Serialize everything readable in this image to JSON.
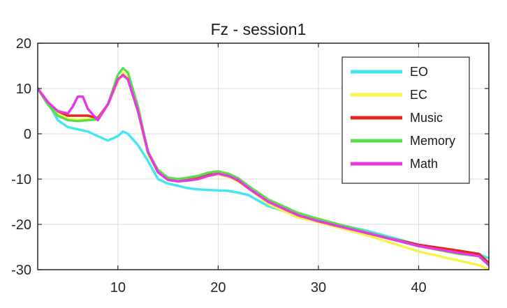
{
  "chart_data": {
    "type": "line",
    "title": "Fz - session1",
    "xlabel": "",
    "ylabel": "",
    "xlim": [
      2,
      47
    ],
    "ylim": [
      -30,
      20
    ],
    "x_ticks": [
      10,
      20,
      30,
      40
    ],
    "y_ticks": [
      20,
      10,
      0,
      -10,
      -20,
      -30
    ],
    "grid": true,
    "legend_position": "top-right",
    "series": [
      {
        "name": "EO",
        "color": "#44e6f2",
        "points": [
          [
            2,
            10
          ],
          [
            3,
            7
          ],
          [
            4,
            3
          ],
          [
            5,
            1.5
          ],
          [
            6,
            1
          ],
          [
            7,
            0.5
          ],
          [
            8,
            -0.5
          ],
          [
            9,
            -1.5
          ],
          [
            10,
            -0.5
          ],
          [
            10.5,
            0.5
          ],
          [
            11,
            0
          ],
          [
            12,
            -2.5
          ],
          [
            13,
            -6
          ],
          [
            14,
            -10
          ],
          [
            15,
            -11
          ],
          [
            16,
            -11.5
          ],
          [
            17,
            -12
          ],
          [
            18,
            -12.3
          ],
          [
            19,
            -12.4
          ],
          [
            20,
            -12.5
          ],
          [
            21,
            -12.6
          ],
          [
            22,
            -13
          ],
          [
            23,
            -13.5
          ],
          [
            25,
            -16
          ],
          [
            28,
            -18
          ],
          [
            30,
            -19
          ],
          [
            35,
            -21.5
          ],
          [
            40,
            -24.5
          ],
          [
            44,
            -26
          ],
          [
            46,
            -26.5
          ],
          [
            47,
            -27.5
          ]
        ]
      },
      {
        "name": "EC",
        "color": "#f7f34a",
        "points": [
          [
            2,
            10
          ],
          [
            3,
            7
          ],
          [
            4,
            4.5
          ],
          [
            5,
            3.3
          ],
          [
            6,
            3.1
          ],
          [
            7,
            3.3
          ],
          [
            8,
            3.5
          ],
          [
            9,
            6.5
          ],
          [
            10,
            11.5
          ],
          [
            10.5,
            13.5
          ],
          [
            11,
            12.5
          ],
          [
            12,
            5
          ],
          [
            13,
            -4.5
          ],
          [
            14,
            -8.5
          ],
          [
            15,
            -10
          ],
          [
            16,
            -10.5
          ],
          [
            17,
            -10.3
          ],
          [
            18,
            -10
          ],
          [
            19,
            -9.3
          ],
          [
            20,
            -9
          ],
          [
            21,
            -9.5
          ],
          [
            22,
            -10.5
          ],
          [
            23,
            -12
          ],
          [
            25,
            -15.5
          ],
          [
            28,
            -18.5
          ],
          [
            30,
            -19.5
          ],
          [
            35,
            -22.5
          ],
          [
            40,
            -26
          ],
          [
            44,
            -28
          ],
          [
            46,
            -29
          ],
          [
            47,
            -30
          ]
        ]
      },
      {
        "name": "Music",
        "color": "#e0281e",
        "points": [
          [
            2,
            10
          ],
          [
            3,
            7
          ],
          [
            4,
            5
          ],
          [
            5,
            4
          ],
          [
            6,
            4
          ],
          [
            7,
            4
          ],
          [
            8,
            3.5
          ],
          [
            9,
            6.5
          ],
          [
            10,
            12
          ],
          [
            10.5,
            13
          ],
          [
            11,
            12
          ],
          [
            12,
            5
          ],
          [
            13,
            -4
          ],
          [
            14,
            -8.5
          ],
          [
            15,
            -10
          ],
          [
            16,
            -10.3
          ],
          [
            17,
            -10.1
          ],
          [
            18,
            -9.7
          ],
          [
            19,
            -9
          ],
          [
            20,
            -8.6
          ],
          [
            21,
            -9.2
          ],
          [
            22,
            -10.3
          ],
          [
            23,
            -12
          ],
          [
            25,
            -15
          ],
          [
            28,
            -18
          ],
          [
            30,
            -19.3
          ],
          [
            35,
            -22
          ],
          [
            40,
            -24.5
          ],
          [
            44,
            -25.8
          ],
          [
            46,
            -26.5
          ],
          [
            47,
            -28.5
          ]
        ]
      },
      {
        "name": "Memory",
        "color": "#5cdc4a",
        "points": [
          [
            2,
            10
          ],
          [
            3,
            6.5
          ],
          [
            4,
            4
          ],
          [
            5,
            3
          ],
          [
            6,
            2.8
          ],
          [
            7,
            3
          ],
          [
            8,
            3.2
          ],
          [
            9,
            6.5
          ],
          [
            10,
            13
          ],
          [
            10.5,
            14.5
          ],
          [
            11,
            13.5
          ],
          [
            12,
            6
          ],
          [
            13,
            -4
          ],
          [
            14,
            -8
          ],
          [
            15,
            -9.7
          ],
          [
            16,
            -10
          ],
          [
            17,
            -9.7
          ],
          [
            18,
            -9.3
          ],
          [
            19,
            -8.6
          ],
          [
            20,
            -8.3
          ],
          [
            21,
            -8.8
          ],
          [
            22,
            -9.8
          ],
          [
            23,
            -11.5
          ],
          [
            25,
            -14.5
          ],
          [
            28,
            -17.5
          ],
          [
            30,
            -18.8
          ],
          [
            35,
            -21.8
          ],
          [
            40,
            -24.8
          ],
          [
            44,
            -26.5
          ],
          [
            46,
            -27
          ],
          [
            47,
            -29
          ]
        ]
      },
      {
        "name": "Math",
        "color": "#e43ae3",
        "points": [
          [
            2,
            10
          ],
          [
            3,
            7
          ],
          [
            4,
            5
          ],
          [
            5,
            4.5
          ],
          [
            5.5,
            6
          ],
          [
            6,
            8.2
          ],
          [
            6.5,
            8.2
          ],
          [
            7,
            5.5
          ],
          [
            8,
            3
          ],
          [
            9,
            6.5
          ],
          [
            10,
            12
          ],
          [
            10.5,
            13
          ],
          [
            11,
            12
          ],
          [
            12,
            5
          ],
          [
            13,
            -4
          ],
          [
            14,
            -8.5
          ],
          [
            15,
            -10.2
          ],
          [
            16,
            -10.5
          ],
          [
            17,
            -10.3
          ],
          [
            18,
            -10
          ],
          [
            19,
            -9.3
          ],
          [
            20,
            -8.8
          ],
          [
            21,
            -9.3
          ],
          [
            22,
            -10.2
          ],
          [
            23,
            -12
          ],
          [
            25,
            -15
          ],
          [
            28,
            -18
          ],
          [
            30,
            -19.3
          ],
          [
            35,
            -22
          ],
          [
            40,
            -24.8
          ],
          [
            44,
            -26.3
          ],
          [
            46,
            -27
          ],
          [
            47,
            -29
          ]
        ]
      }
    ]
  }
}
